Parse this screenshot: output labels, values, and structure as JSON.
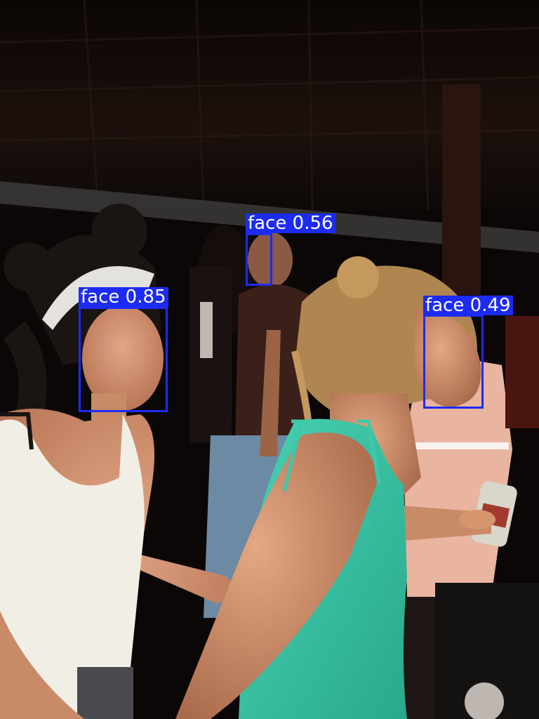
{
  "detections": [
    {
      "label": "face",
      "score": "0.85",
      "color": "#1c2cf5"
    },
    {
      "label": "face",
      "score": "0.56",
      "color": "#1c2cf5"
    },
    {
      "label": "face",
      "score": "0.49",
      "color": "#1c2cf5"
    }
  ],
  "scene": {
    "palette": {
      "ceiling": "#1c100c",
      "beam": "#3b3a3a",
      "white_top": "#f1eee6",
      "teal_top": "#3ec8a9",
      "pink_shirt": "#eab5a0",
      "skin": "#d79a78",
      "hair_dark": "#1a1412",
      "hair_blonde": "#b08650"
    }
  }
}
